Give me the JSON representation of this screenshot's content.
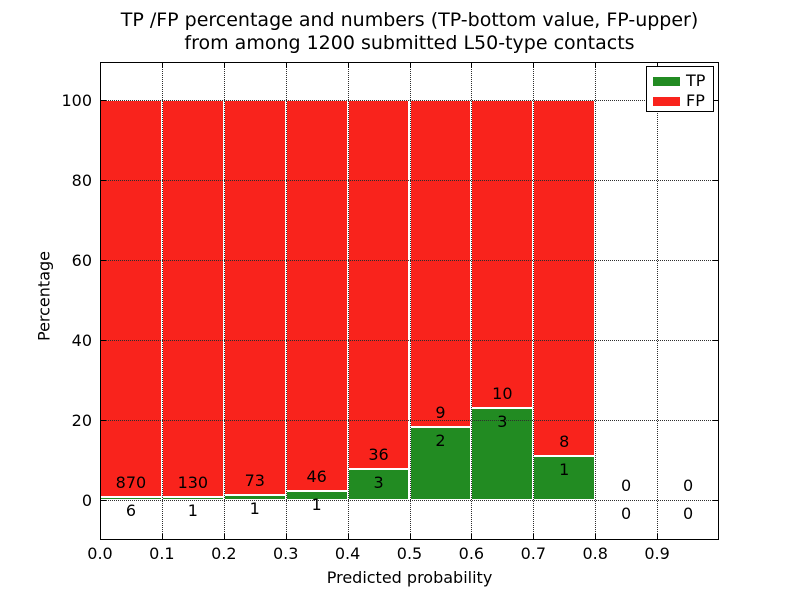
{
  "title": {
    "line1": "TP /FP percentage and numbers (TP-bottom value, FP-upper)",
    "line2": "from among 1200 submitted L50-type contacts"
  },
  "chart_data": {
    "type": "bar",
    "stacked": true,
    "title": "TP /FP percentage and numbers (TP-bottom value, FP-upper)\nfrom among 1200 submitted L50-type contacts",
    "xlabel": "Predicted probability",
    "ylabel": "Percentage",
    "xlim": [
      0.0,
      1.0
    ],
    "ylim": [
      -10,
      110
    ],
    "x_ticks": [
      0.0,
      0.1,
      0.2,
      0.3,
      0.4,
      0.5,
      0.6,
      0.7,
      0.8,
      0.9
    ],
    "x_tick_labels": [
      "0.0",
      "0.1",
      "0.2",
      "0.3",
      "0.4",
      "0.5",
      "0.6",
      "0.7",
      "0.8",
      "0.9"
    ],
    "y_ticks": [
      0,
      20,
      40,
      60,
      80,
      100
    ],
    "y_tick_labels": [
      "0",
      "20",
      "40",
      "60",
      "80",
      "100"
    ],
    "grid": {
      "visible": true,
      "style": "dotted"
    },
    "legend": {
      "position": "upper-right",
      "entries": [
        {
          "label": "TP",
          "color": "#228b22"
        },
        {
          "label": "FP",
          "color": "#f9231c"
        }
      ]
    },
    "total_submitted": 1200,
    "bins": [
      {
        "range": [
          0.0,
          0.1
        ],
        "tp": 6,
        "fp": 870,
        "tp_pct": 0.68,
        "fp_pct": 99.32
      },
      {
        "range": [
          0.1,
          0.2
        ],
        "tp": 1,
        "fp": 130,
        "tp_pct": 0.76,
        "fp_pct": 99.24
      },
      {
        "range": [
          0.2,
          0.3
        ],
        "tp": 1,
        "fp": 73,
        "tp_pct": 1.35,
        "fp_pct": 98.65
      },
      {
        "range": [
          0.3,
          0.4
        ],
        "tp": 1,
        "fp": 46,
        "tp_pct": 2.13,
        "fp_pct": 97.87
      },
      {
        "range": [
          0.4,
          0.5
        ],
        "tp": 3,
        "fp": 36,
        "tp_pct": 7.69,
        "fp_pct": 92.31
      },
      {
        "range": [
          0.5,
          0.6
        ],
        "tp": 2,
        "fp": 9,
        "tp_pct": 18.18,
        "fp_pct": 81.82
      },
      {
        "range": [
          0.6,
          0.7
        ],
        "tp": 3,
        "fp": 10,
        "tp_pct": 23.08,
        "fp_pct": 76.92
      },
      {
        "range": [
          0.7,
          0.8
        ],
        "tp": 1,
        "fp": 8,
        "tp_pct": 11.11,
        "fp_pct": 88.89
      },
      {
        "range": [
          0.8,
          0.9
        ],
        "tp": 0,
        "fp": 0,
        "tp_pct": 0,
        "fp_pct": 0
      },
      {
        "range": [
          0.9,
          1.0
        ],
        "tp": 0,
        "fp": 0,
        "tp_pct": 0,
        "fp_pct": 0
      }
    ]
  },
  "colors": {
    "tp_green": "#228b22",
    "fp_red": "#f9231c",
    "grid": "#2e2e2e",
    "text": "#000000",
    "background": "#ffffff"
  }
}
